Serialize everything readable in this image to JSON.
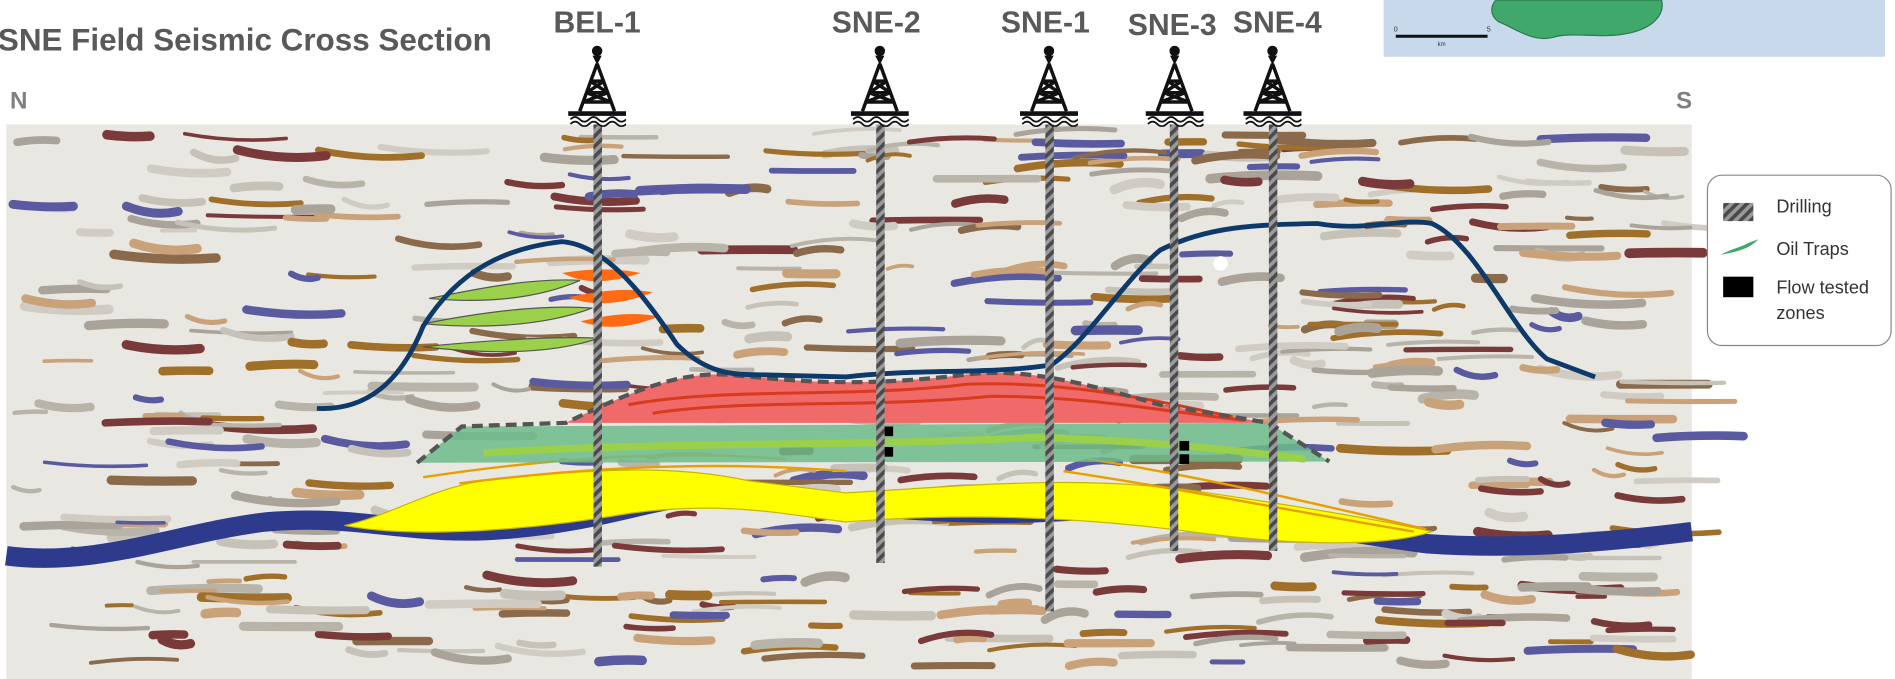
{
  "header": {
    "title": "SNE Field Seismic Cross Section"
  },
  "compass": {
    "north": "N",
    "south": "S"
  },
  "wells": [
    {
      "label": "BEL-1"
    },
    {
      "label": "SNE-2"
    },
    {
      "label": "SNE-1"
    },
    {
      "label": "SNE-3"
    },
    {
      "label": "SNE-4"
    }
  ],
  "legend": [
    {
      "label": "Drilling"
    },
    {
      "label": "Oil Traps"
    },
    {
      "label": "Flow tested zones"
    }
  ],
  "map_inset": {
    "scale_start": "0",
    "scale_end": "5",
    "scale_unit": "km"
  }
}
